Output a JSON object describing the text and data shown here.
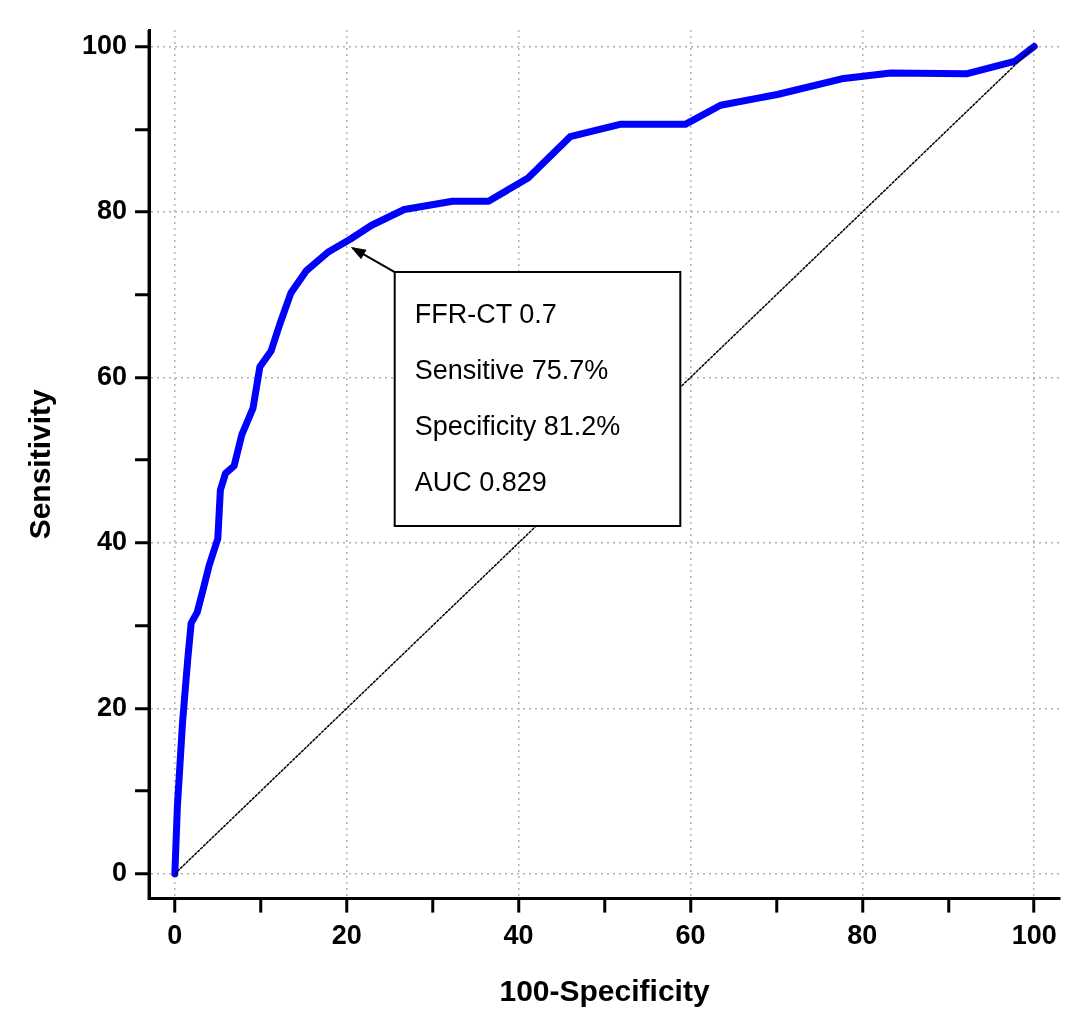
{
  "chart_data": {
    "type": "line",
    "xlabel": "100-Specificity",
    "ylabel": "Sensitivity",
    "xlim": [
      -3,
      103
    ],
    "ylim": [
      -3,
      102
    ],
    "xticks": [
      0,
      {
        "value": 10,
        "label": null
      },
      20,
      {
        "value": 30,
        "label": null
      },
      40,
      {
        "value": 50,
        "label": null
      },
      60,
      {
        "value": 70,
        "label": null
      },
      80,
      {
        "value": 90,
        "label": null
      },
      100
    ],
    "yticks": [
      0,
      {
        "value": 10,
        "label": null
      },
      20,
      {
        "value": 30,
        "label": null
      },
      40,
      {
        "value": 50,
        "label": null
      },
      60,
      {
        "value": 70,
        "label": null
      },
      80,
      {
        "value": 90,
        "label": null
      },
      100
    ],
    "grid": true,
    "legend": false,
    "marker": "none",
    "series": [
      {
        "color": "#0000ff",
        "line_style": "solid",
        "x": [
          0,
          0.3,
          0.9,
          1.5,
          1.9,
          2.6,
          3.4,
          4.0,
          5.0,
          5.3,
          5.9,
          6.9,
          7.8,
          9.1,
          9.9,
          11.2,
          12.2,
          13.5,
          15.3,
          17.9,
          20.4,
          22.9,
          26.7,
          32.3,
          36.5,
          41.1,
          46.0,
          51.8,
          59.4,
          63.5,
          70.1,
          77.6,
          83.3,
          92.1,
          97.7,
          100
        ],
        "values": [
          0,
          8.2,
          18.3,
          25.9,
          30.3,
          31.6,
          34.8,
          37.3,
          40.5,
          46.4,
          48.4,
          49.3,
          53.1,
          56.3,
          61.3,
          63.2,
          66.4,
          70.2,
          72.9,
          75.2,
          76.7,
          78.4,
          80.3,
          81.3,
          81.3,
          84.1,
          89.1,
          90.6,
          90.6,
          92.9,
          94.2,
          96.1,
          96.8,
          96.7,
          98.2,
          100
        ]
      },
      {
        "color": "#000000",
        "line_style": "dotted",
        "x": [
          0,
          100
        ],
        "values": [
          0,
          100
        ]
      }
    ],
    "annotations": [
      {
        "text": "FFR-CT 0.7\nSensitive 75.7%\nSpecificity 81.2%\nAUC 0.829",
        "x": 20,
        "y": 76
      }
    ]
  }
}
